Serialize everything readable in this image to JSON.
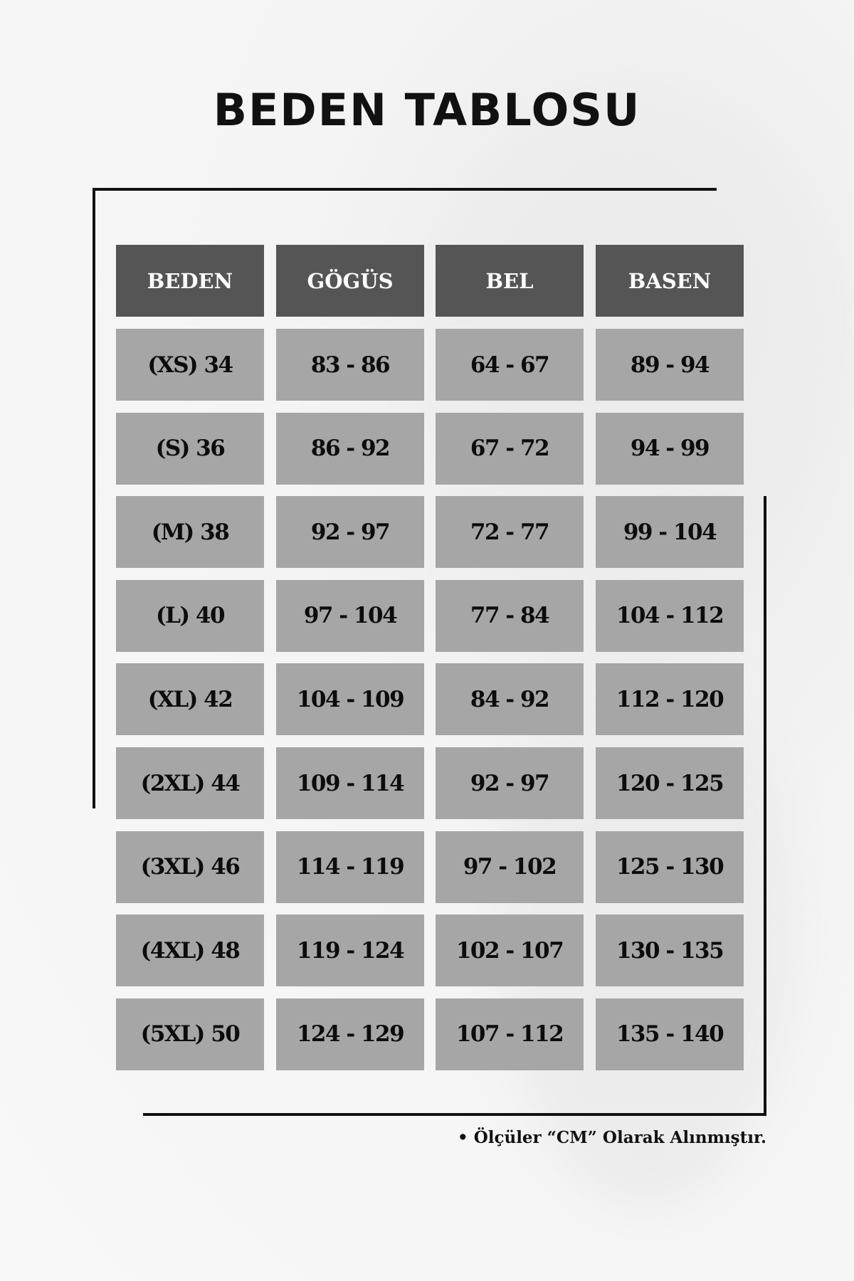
{
  "title": "BEDEN TABLOSU",
  "colors": {
    "header_bg": "#555555",
    "cell_bg": "#a6a6a6",
    "header_text": "#ffffff",
    "cell_text": "#0c0c0c"
  },
  "table": {
    "headers": [
      "BEDEN",
      "GÖGÜS",
      "BEL",
      "BASEN"
    ],
    "rows": [
      [
        "(XS) 34",
        "83 - 86",
        "64 - 67",
        "89 - 94"
      ],
      [
        "(S) 36",
        "86 - 92",
        "67 - 72",
        "94 - 99"
      ],
      [
        "(M) 38",
        "92 - 97",
        "72 - 77",
        "99 - 104"
      ],
      [
        "(L) 40",
        "97 - 104",
        "77 - 84",
        "104 - 112"
      ],
      [
        "(XL) 42",
        "104 - 109",
        "84 - 92",
        "112 - 120"
      ],
      [
        "(2XL) 44",
        "109 - 114",
        "92 - 97",
        "120 - 125"
      ],
      [
        "(3XL) 46",
        "114 - 119",
        "97 - 102",
        "125 - 130"
      ],
      [
        "(4XL) 48",
        "119 - 124",
        "102 - 107",
        "130 - 135"
      ],
      [
        "(5XL) 50",
        "124 - 129",
        "107 - 112",
        "135 - 140"
      ]
    ]
  },
  "footnote": "• Ölçüler “CM” Olarak Alınmıştır."
}
